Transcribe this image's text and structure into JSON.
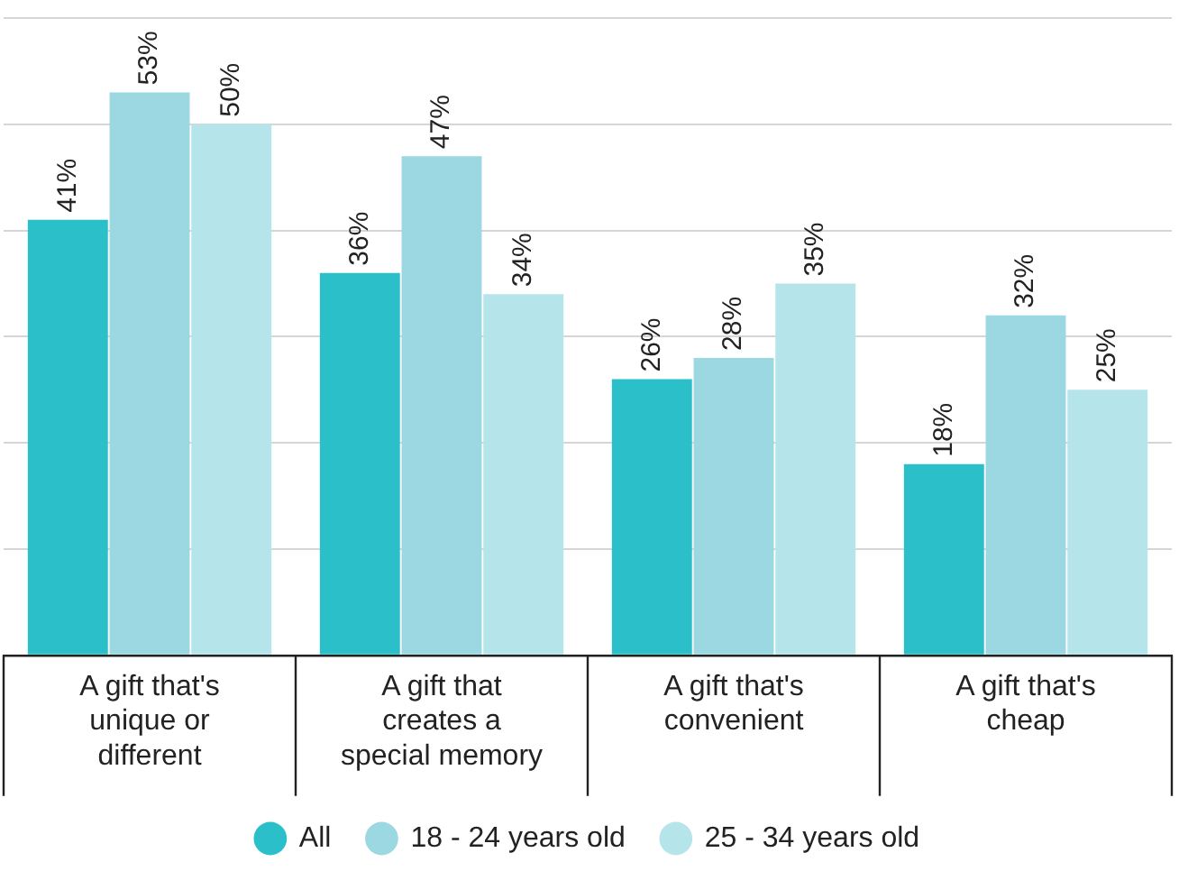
{
  "chart_data": {
    "type": "bar",
    "categories": [
      "A gift that's unique or different",
      "A gift that creates a special memory",
      "A gift that's convenient",
      "A gift that's cheap"
    ],
    "series": [
      {
        "name": "All",
        "color": "#2bbfc9",
        "values": [
          41,
          36,
          26,
          18
        ],
        "value_labels": [
          "41%",
          "36%",
          "26%",
          "18%"
        ]
      },
      {
        "name": "18 - 24 years old",
        "color": "#9bd8e2",
        "values": [
          53,
          47,
          28,
          32
        ],
        "value_labels": [
          "53%",
          "47%",
          "28%",
          "32%"
        ]
      },
      {
        "name": "25 - 34 years old",
        "color": "#b6e4eb",
        "values": [
          50,
          34,
          35,
          25
        ],
        "value_labels": [
          "50%",
          "34%",
          "35%",
          "25%"
        ]
      }
    ],
    "grid": "y",
    "legend": "bottom",
    "marker": "circle"
  }
}
